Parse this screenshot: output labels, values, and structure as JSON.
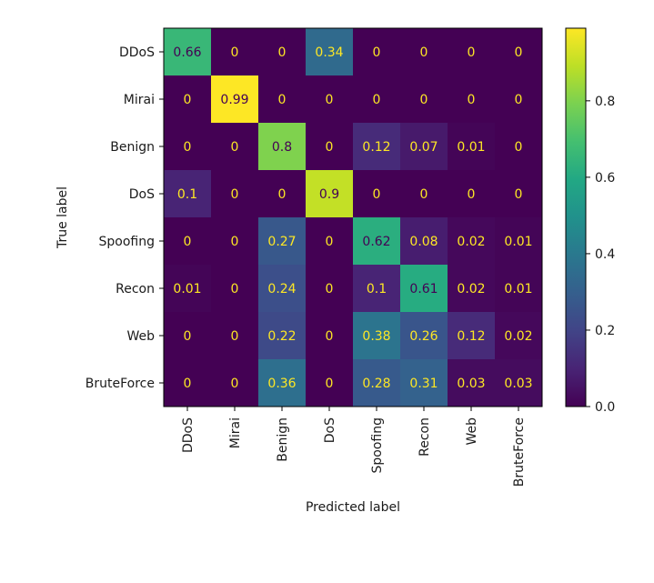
{
  "chart_data": {
    "type": "heatmap",
    "title": "",
    "xlabel": "Predicted label",
    "ylabel": "True label",
    "x_categories": [
      "DDoS",
      "Mirai",
      "Benign",
      "DoS",
      "Spoofing",
      "Recon",
      "Web",
      "BruteForce"
    ],
    "y_categories": [
      "DDoS",
      "Mirai",
      "Benign",
      "DoS",
      "Spoofing",
      "Recon",
      "Web",
      "BruteForce"
    ],
    "values": [
      [
        0.66,
        0,
        0,
        0.34,
        0,
        0,
        0,
        0
      ],
      [
        0,
        0.99,
        0,
        0,
        0,
        0,
        0,
        0
      ],
      [
        0,
        0,
        0.8,
        0,
        0.12,
        0.07,
        0.01,
        0
      ],
      [
        0.1,
        0,
        0,
        0.9,
        0,
        0,
        0,
        0
      ],
      [
        0,
        0,
        0.27,
        0,
        0.62,
        0.08,
        0.02,
        0.01
      ],
      [
        0.01,
        0,
        0.24,
        0,
        0.1,
        0.61,
        0.02,
        0.01
      ],
      [
        0,
        0,
        0.22,
        0,
        0.38,
        0.26,
        0.12,
        0.02
      ],
      [
        0,
        0,
        0.36,
        0,
        0.28,
        0.31,
        0.03,
        0.03
      ]
    ],
    "colormap": "viridis",
    "value_range": [
      0,
      0.99
    ],
    "colorbar_ticks": [
      0.0,
      0.2,
      0.4,
      0.6,
      0.8
    ],
    "colorbar_tick_labels": [
      "0.0",
      "0.2",
      "0.4",
      "0.6",
      "0.8"
    ],
    "label_color_light": "#fde725",
    "label_color_dark": "#440154",
    "grid": false,
    "legend": "colorbar-right"
  }
}
